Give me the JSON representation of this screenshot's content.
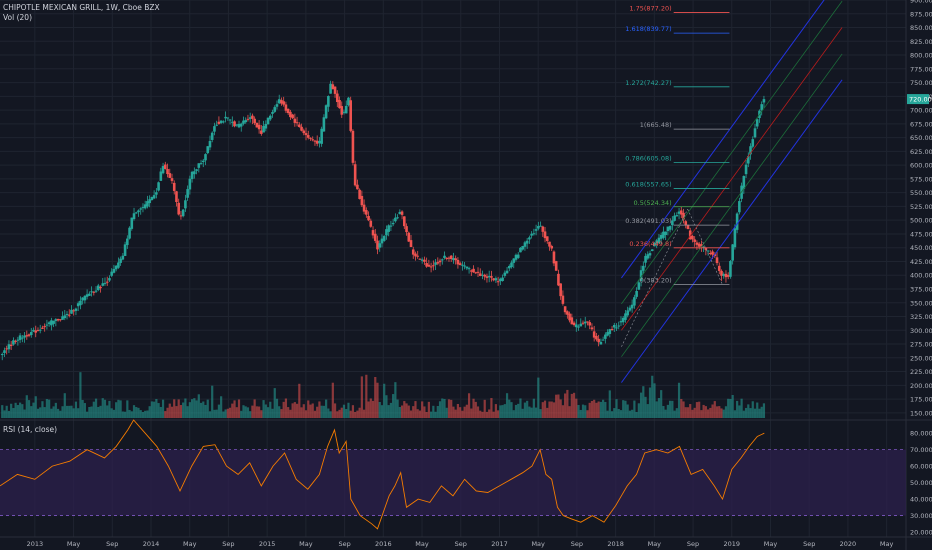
{
  "header": {
    "symbol_title": "CHIPOTLE MEXICAN GRILL, 1W, Cboe BZX",
    "volume_label": "Vol (20)",
    "rsi_label": "RSI (14, close)"
  },
  "colors": {
    "background": "#131722",
    "up": "#26a69a",
    "down": "#ef5350",
    "grid": "#1f2430",
    "axis_text": "#b2b5be",
    "rsi_line": "#f57c00",
    "rsi_band_fill": "#2a1f4a",
    "rsi_band_line": "#7e57c2",
    "pitchfork_outer": "#2233dd",
    "pitchfork_inner": "#1c6e3a",
    "pitchfork_median": "#b71c1c",
    "last_price_tag": "#26a69a"
  },
  "icons": [],
  "chart_data": [
    {
      "type": "candlestick",
      "panel": "price",
      "title": "CHIPOTLE MEXICAN GRILL, 1W, Cboe BZX",
      "y_axis_ticks": [
        "150.00",
        "175.00",
        "200.00",
        "225.00",
        "250.00",
        "275.00",
        "300.00",
        "325.00",
        "350.00",
        "375.00",
        "400.00",
        "425.00",
        "450.00",
        "475.00",
        "500.00",
        "525.00",
        "550.00",
        "575.00",
        "600.00",
        "625.00",
        "650.00",
        "675.00",
        "700.00",
        "725.00",
        "750.00",
        "775.00",
        "800.00",
        "825.00",
        "850.00",
        "875.00",
        "900.00"
      ],
      "ylim": [
        137,
        900
      ],
      "x_axis_ticks": [
        "2013",
        "May",
        "Sep",
        "2014",
        "May",
        "Sep",
        "2015",
        "May",
        "Sep",
        "2016",
        "May",
        "Sep",
        "2017",
        "May",
        "Sep",
        "2018",
        "May",
        "Sep",
        "2019",
        "May",
        "Sep",
        "2020",
        "May"
      ],
      "x_range_years": [
        2012.7,
        2020.5
      ],
      "price_path": [
        [
          2012.7,
          257
        ],
        [
          2012.85,
          285
        ],
        [
          2013.0,
          298
        ],
        [
          2013.15,
          315
        ],
        [
          2013.3,
          330
        ],
        [
          2013.45,
          365
        ],
        [
          2013.6,
          385
        ],
        [
          2013.75,
          430
        ],
        [
          2013.85,
          515
        ],
        [
          2013.95,
          525
        ],
        [
          2014.05,
          555
        ],
        [
          2014.1,
          600
        ],
        [
          2014.18,
          570
        ],
        [
          2014.25,
          500
        ],
        [
          2014.35,
          585
        ],
        [
          2014.45,
          610
        ],
        [
          2014.55,
          675
        ],
        [
          2014.65,
          685
        ],
        [
          2014.75,
          670
        ],
        [
          2014.85,
          690
        ],
        [
          2014.95,
          660
        ],
        [
          2015.1,
          720
        ],
        [
          2015.2,
          690
        ],
        [
          2015.35,
          650
        ],
        [
          2015.45,
          640
        ],
        [
          2015.5,
          700
        ],
        [
          2015.55,
          750
        ],
        [
          2015.65,
          690
        ],
        [
          2015.7,
          720
        ],
        [
          2015.75,
          570
        ],
        [
          2015.85,
          510
        ],
        [
          2015.95,
          450
        ],
        [
          2016.05,
          490
        ],
        [
          2016.15,
          515
        ],
        [
          2016.25,
          440
        ],
        [
          2016.4,
          415
        ],
        [
          2016.55,
          435
        ],
        [
          2016.7,
          415
        ],
        [
          2016.85,
          400
        ],
        [
          2017.0,
          390
        ],
        [
          2017.1,
          420
        ],
        [
          2017.25,
          470
        ],
        [
          2017.35,
          490
        ],
        [
          2017.45,
          445
        ],
        [
          2017.55,
          340
        ],
        [
          2017.65,
          305
        ],
        [
          2017.75,
          320
        ],
        [
          2017.85,
          275
        ],
        [
          2017.95,
          300
        ],
        [
          2018.05,
          315
        ],
        [
          2018.15,
          350
        ],
        [
          2018.25,
          430
        ],
        [
          2018.35,
          460
        ],
        [
          2018.45,
          485
        ],
        [
          2018.55,
          520
        ],
        [
          2018.65,
          465
        ],
        [
          2018.75,
          450
        ],
        [
          2018.85,
          435
        ],
        [
          2018.9,
          400
        ],
        [
          2018.97,
          400
        ],
        [
          2019.0,
          440
        ],
        [
          2019.05,
          520
        ],
        [
          2019.12,
          600
        ],
        [
          2019.18,
          650
        ],
        [
          2019.25,
          712
        ],
        [
          2019.28,
          720
        ]
      ],
      "last_price_label": "720.00",
      "last_price_value": 720,
      "fibonacci_levels": [
        {
          "label": "1.75(877.20)",
          "value": 877.2,
          "color": "#ef5350"
        },
        {
          "label": "1.618(839.77)",
          "value": 839.77,
          "color": "#2962ff"
        },
        {
          "label": "1.272(742.27)",
          "value": 742.27,
          "color": "#26a69a"
        },
        {
          "label": "1(665.48)",
          "value": 665.48,
          "color": "#9598a1"
        },
        {
          "label": "0.786(605.08)",
          "value": 605.08,
          "color": "#26a69a"
        },
        {
          "label": "0.618(557.65)",
          "value": 557.65,
          "color": "#26a69a"
        },
        {
          "label": "0.5(524.34)",
          "value": 524.34,
          "color": "#4caf50"
        },
        {
          "label": "0.382(491.03)",
          "value": 491.03,
          "color": "#9598a1"
        },
        {
          "label": "0.236(449.8)",
          "value": 449.8,
          "color": "#ef5350"
        },
        {
          "label": "0(383.20)",
          "value": 383.2,
          "color": "#9598a1"
        }
      ]
    },
    {
      "type": "bar",
      "panel": "volume",
      "title": "Vol (20)",
      "pattern": "low baseline with spikes around 2016 and 2018"
    },
    {
      "type": "line",
      "panel": "rsi",
      "title": "RSI (14, close)",
      "y_axis_ticks": [
        "20.0000",
        "30.0000",
        "40.0000",
        "50.0000",
        "60.0000",
        "70.0000",
        "80.0000"
      ],
      "ylim": [
        17,
        88
      ],
      "band": [
        30,
        70
      ],
      "points": [
        [
          2012.7,
          48
        ],
        [
          2012.85,
          55
        ],
        [
          2013.0,
          52
        ],
        [
          2013.15,
          60
        ],
        [
          2013.3,
          63
        ],
        [
          2013.45,
          70
        ],
        [
          2013.6,
          65
        ],
        [
          2013.7,
          72
        ],
        [
          2013.8,
          82
        ],
        [
          2013.85,
          88
        ],
        [
          2013.95,
          80
        ],
        [
          2014.05,
          72
        ],
        [
          2014.15,
          60
        ],
        [
          2014.25,
          45
        ],
        [
          2014.35,
          60
        ],
        [
          2014.45,
          72
        ],
        [
          2014.55,
          73
        ],
        [
          2014.65,
          60
        ],
        [
          2014.75,
          55
        ],
        [
          2014.85,
          62
        ],
        [
          2014.95,
          48
        ],
        [
          2015.05,
          60
        ],
        [
          2015.15,
          68
        ],
        [
          2015.25,
          52
        ],
        [
          2015.35,
          46
        ],
        [
          2015.45,
          55
        ],
        [
          2015.52,
          72
        ],
        [
          2015.58,
          82
        ],
        [
          2015.62,
          68
        ],
        [
          2015.68,
          75
        ],
        [
          2015.72,
          40
        ],
        [
          2015.8,
          30
        ],
        [
          2015.9,
          25
        ],
        [
          2015.95,
          22
        ],
        [
          2016.05,
          42
        ],
        [
          2016.1,
          48
        ],
        [
          2016.15,
          56
        ],
        [
          2016.2,
          35
        ],
        [
          2016.3,
          40
        ],
        [
          2016.4,
          38
        ],
        [
          2016.5,
          48
        ],
        [
          2016.6,
          42
        ],
        [
          2016.7,
          52
        ],
        [
          2016.8,
          45
        ],
        [
          2016.9,
          44
        ],
        [
          2017.0,
          48
        ],
        [
          2017.1,
          52
        ],
        [
          2017.2,
          56
        ],
        [
          2017.28,
          60
        ],
        [
          2017.35,
          70
        ],
        [
          2017.4,
          55
        ],
        [
          2017.45,
          52
        ],
        [
          2017.5,
          35
        ],
        [
          2017.55,
          30
        ],
        [
          2017.62,
          28
        ],
        [
          2017.7,
          26
        ],
        [
          2017.8,
          30
        ],
        [
          2017.9,
          26
        ],
        [
          2018.0,
          36
        ],
        [
          2018.05,
          42
        ],
        [
          2018.1,
          48
        ],
        [
          2018.18,
          55
        ],
        [
          2018.25,
          68
        ],
        [
          2018.35,
          70
        ],
        [
          2018.45,
          68
        ],
        [
          2018.55,
          72
        ],
        [
          2018.65,
          55
        ],
        [
          2018.75,
          58
        ],
        [
          2018.85,
          48
        ],
        [
          2018.92,
          40
        ],
        [
          2019.0,
          58
        ],
        [
          2019.08,
          65
        ],
        [
          2019.15,
          72
        ],
        [
          2019.22,
          78
        ],
        [
          2019.28,
          80
        ]
      ]
    }
  ]
}
